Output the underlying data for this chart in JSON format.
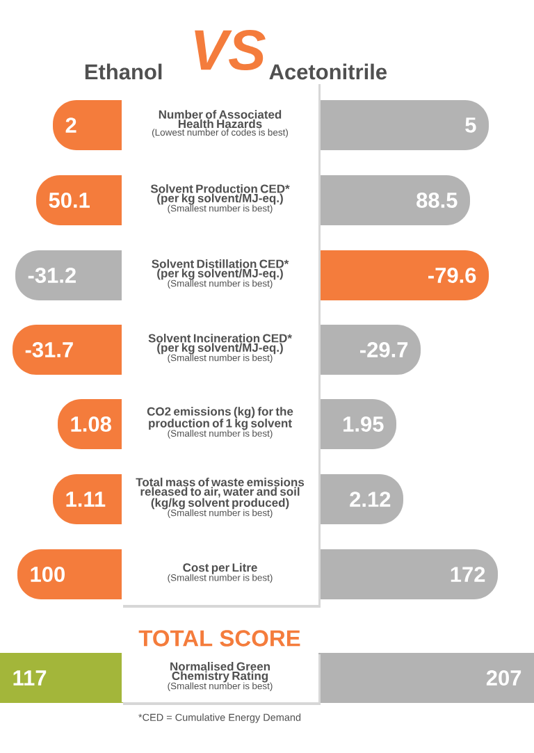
{
  "chart_data": {
    "type": "other",
    "title": "VS",
    "categories": [
      "Number of Associated Health Hazards",
      "Solvent Production CED* (per kg solvent/MJ-eq.)",
      "Solvent Distillation CED* (per kg solvent/MJ-eq.)",
      "Solvent Incineration CED* (per kg solvent/MJ-eq.)",
      "CO2 emissions (kg) for the production of 1 kg solvent",
      "Total mass of waste emissions released to air, water and soil (kg/kg solvent produced)",
      "Cost per Litre",
      "Normalised Green Chemistry Rating"
    ],
    "series": [
      {
        "name": "Ethanol",
        "values": [
          2,
          50.1,
          -31.2,
          -31.7,
          1.08,
          1.11,
          100,
          117
        ],
        "colors": [
          "#f47c3c",
          "#f47c3c",
          "#b3b3b3",
          "#f47c3c",
          "#f47c3c",
          "#f47c3c",
          "#f47c3c",
          "#a3b63a"
        ]
      },
      {
        "name": "Acetonitrile",
        "values": [
          5,
          88.5,
          -79.6,
          -29.7,
          1.95,
          2.12,
          172,
          207
        ],
        "colors": [
          "#b3b3b3",
          "#b3b3b3",
          "#f47c3c",
          "#b3b3b3",
          "#b3b3b3",
          "#b3b3b3",
          "#b3b3b3",
          "#b3b3b3"
        ]
      }
    ],
    "data_labels": true,
    "annotations": [
      "(Lowest number of codes is best)",
      "(Smallest number is best)",
      "(Smallest number is best)",
      "(Smallest number is best)",
      "(Smallest number is best)",
      "(Smallest number is best)",
      "(Smallest number is best)",
      "(Smallest number is best)",
      "TOTAL SCORE",
      "*CED = Cumulative Energy Demand"
    ]
  }
}
